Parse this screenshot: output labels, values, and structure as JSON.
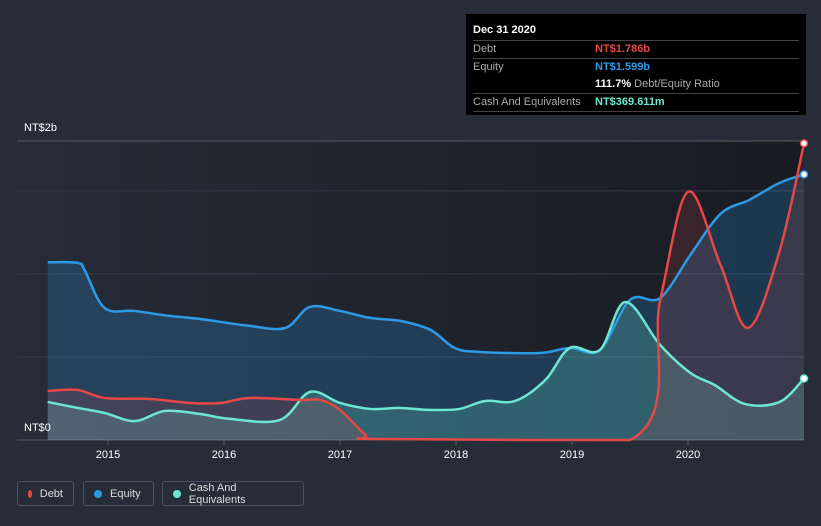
{
  "tooltip": {
    "date": "Dec 31 2020",
    "debt_label": "Debt",
    "debt_value": "NT$1.786b",
    "equity_label": "Equity",
    "equity_value": "NT$1.599b",
    "ratio_value": "111.7%",
    "ratio_label": "Debt/Equity Ratio",
    "cash_label": "Cash And Equivalents",
    "cash_value": "NT$369.611m"
  },
  "legend": [
    {
      "label": "Debt"
    },
    {
      "label": "Equity"
    },
    {
      "label": "Cash And Equivalents"
    }
  ],
  "chart_data": {
    "type": "area",
    "ylim": [
      0,
      1.8
    ],
    "y_unit": "NT$ billions",
    "y_tick_labels": [
      "NT$2b",
      "NT$0"
    ],
    "x_ticks": [
      2015,
      2016,
      2017,
      2018,
      2019,
      2020
    ],
    "x_tick_labels": [
      "2015",
      "2016",
      "2017",
      "2018",
      "2019",
      "2020"
    ],
    "xlim": [
      2014.34,
      2021.0
    ],
    "colors": {
      "Debt": "#e64747",
      "Equity": "#2d9ae6",
      "Cash And Equivalents": "#6ee6d2"
    },
    "series": [
      {
        "name": "Equity",
        "x": [
          2014.48,
          2014.74,
          2014.8,
          2014.97,
          2015.23,
          2015.53,
          2015.79,
          2016.22,
          2016.53,
          2016.74,
          2017.0,
          2017.26,
          2017.52,
          2017.78,
          2017.99,
          2018.21,
          2018.72,
          2018.98,
          2019.24,
          2019.5,
          2019.76,
          2020.02,
          2020.28,
          2020.53,
          2020.79,
          2021.0
        ],
        "values": [
          1.07,
          1.066,
          1.02,
          0.795,
          0.777,
          0.747,
          0.729,
          0.687,
          0.675,
          0.801,
          0.777,
          0.735,
          0.717,
          0.663,
          0.554,
          0.53,
          0.524,
          0.554,
          0.542,
          0.843,
          0.855,
          1.114,
          1.361,
          1.446,
          1.548,
          1.599
        ]
      },
      {
        "name": "Cash And Equivalents",
        "x": [
          2014.48,
          2014.74,
          2014.97,
          2015.23,
          2015.49,
          2015.79,
          2016.05,
          2016.48,
          2016.74,
          2017.0,
          2017.26,
          2017.52,
          2017.78,
          2018.03,
          2018.25,
          2018.51,
          2018.77,
          2018.98,
          2019.24,
          2019.46,
          2019.76,
          2020.02,
          2020.23,
          2020.49,
          2020.79,
          2021.0
        ],
        "values": [
          0.229,
          0.193,
          0.163,
          0.114,
          0.175,
          0.157,
          0.127,
          0.12,
          0.289,
          0.223,
          0.187,
          0.193,
          0.181,
          0.187,
          0.235,
          0.235,
          0.361,
          0.554,
          0.542,
          0.831,
          0.572,
          0.404,
          0.331,
          0.217,
          0.229,
          0.37
        ]
      },
      {
        "name": "Debt",
        "x": [
          2014.48,
          2014.74,
          2014.97,
          2015.36,
          2015.71,
          2015.97,
          2016.22,
          2016.66,
          2016.83,
          2017.0,
          2017.22,
          2017.34,
          2019.5,
          2019.76,
          2020.0,
          2020.28,
          2020.52,
          2020.79,
          2021.0
        ],
        "values": [
          0.295,
          0.301,
          0.253,
          0.247,
          0.223,
          0.223,
          0.253,
          0.241,
          0.241,
          0.181,
          0.03,
          0.006,
          0,
          0.843,
          1.494,
          1.054,
          0.675,
          1.139,
          1.786
        ]
      }
    ]
  }
}
